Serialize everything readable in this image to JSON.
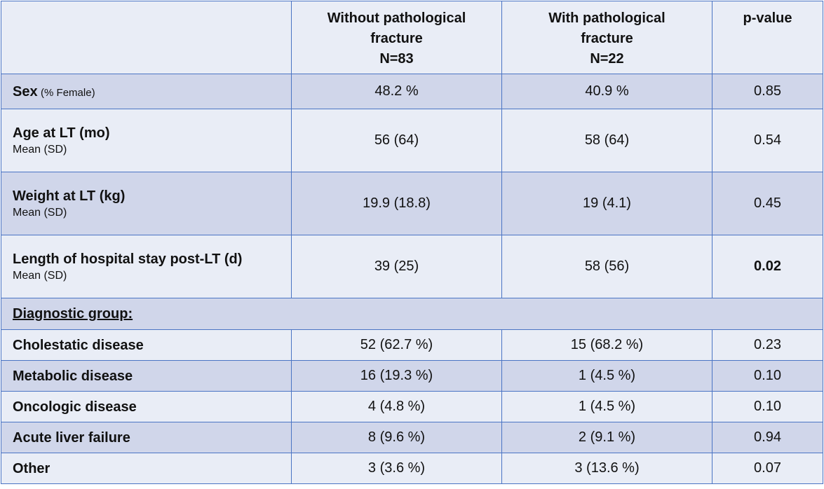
{
  "table": {
    "headers": {
      "col0": "",
      "col1": [
        "Without pathological",
        "fracture",
        "N=83"
      ],
      "col2": [
        "With pathological",
        "fracture",
        "N=22"
      ],
      "col3": [
        "p-value"
      ]
    },
    "rows": [
      {
        "label": "Sex",
        "sub": "(% Female)",
        "without": "48.2 %",
        "with": "40.9 %",
        "p": "0.85",
        "p_bold": false
      },
      {
        "label": "Age at LT (mo)",
        "sub": "Mean (SD)",
        "without": "56 (64)",
        "with": "58 (64)",
        "p": "0.54",
        "p_bold": false
      },
      {
        "label": "Weight at LT (kg)",
        "sub": "Mean (SD)",
        "without": "19.9 (18.8)",
        "with": "19 (4.1)",
        "p": "0.45",
        "p_bold": false
      },
      {
        "label": "Length of hospital stay post-LT (d)",
        "sub": "Mean (SD)",
        "without": "39 (25)",
        "with": "58 (56)",
        "p": "0.02",
        "p_bold": true
      }
    ],
    "section_label": "Diagnostic group:",
    "diagnostic_rows": [
      {
        "label": "Cholestatic disease",
        "without": "52 (62.7 %)",
        "with": "15 (68.2 %)",
        "p": "0.23"
      },
      {
        "label": "Metabolic disease",
        "without": "16 (19.3 %)",
        "with": "1 (4.5 %)",
        "p": "0.10"
      },
      {
        "label": "Oncologic disease",
        "without": "4 (4.8 %)",
        "with": "1 (4.5 %)",
        "p": "0.10"
      },
      {
        "label": "Acute liver failure",
        "without": "8 (9.6 %)",
        "with": "2 (9.1 %)",
        "p": "0.94"
      },
      {
        "label": "Other",
        "without": "3 (3.6 %)",
        "with": "3 (13.6 %)",
        "p": "0.07"
      }
    ]
  },
  "colors": {
    "border": "#4a74c4",
    "row_dark": "#d0d6ea",
    "row_light": "#e9edf6"
  }
}
